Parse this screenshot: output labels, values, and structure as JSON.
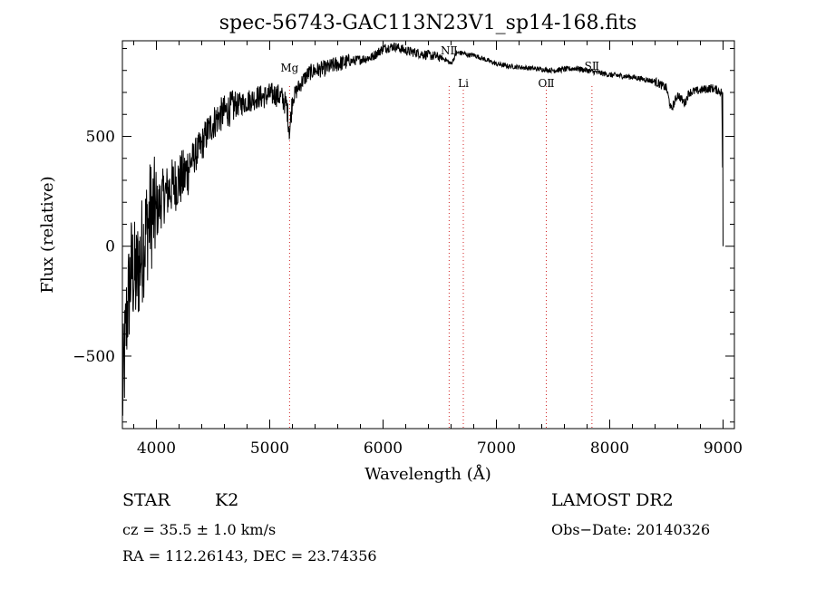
{
  "chart_data": {
    "type": "line",
    "title": "spec-56743-GAC113N23V1_sp14-168.fits",
    "xlabel": "Wavelength (Å)",
    "ylabel": "Flux (relative)",
    "xlim": [
      3700,
      9100
    ],
    "ylim": [
      -830,
      935
    ],
    "xticks": [
      4000,
      5000,
      6000,
      7000,
      8000,
      9000
    ],
    "xtick_labels": [
      "4000",
      "5000",
      "6000",
      "7000",
      "8000",
      "9000"
    ],
    "yticks": [
      -500,
      0,
      500
    ],
    "ytick_labels": [
      "−500",
      "0",
      "500"
    ],
    "grid": false,
    "line_markers": [
      {
        "label": "Mg",
        "x": 5175
      },
      {
        "label": "NⅡ",
        "x": 6583
      },
      {
        "label": "Li",
        "x": 6708
      },
      {
        "label": "OⅡ",
        "x": 7440
      },
      {
        "label": "SⅡ",
        "x": 7843
      }
    ],
    "series": [
      {
        "name": "flux",
        "x": [
          3700,
          3740,
          3780,
          3820,
          3860,
          3900,
          3950,
          4000,
          4050,
          4100,
          4150,
          4200,
          4250,
          4300,
          4350,
          4400,
          4450,
          4500,
          4550,
          4600,
          4650,
          4700,
          4750,
          4800,
          4850,
          4900,
          4950,
          5000,
          5050,
          5100,
          5150,
          5175,
          5200,
          5250,
          5300,
          5350,
          5400,
          5500,
          5600,
          5700,
          5800,
          5900,
          5950,
          6000,
          6050,
          6100,
          6150,
          6200,
          6300,
          6400,
          6500,
          6550,
          6600,
          6650,
          6700,
          6750,
          6800,
          6900,
          7000,
          7100,
          7200,
          7300,
          7400,
          7500,
          7600,
          7700,
          7800,
          7900,
          8000,
          8100,
          8200,
          8300,
          8400,
          8450,
          8500,
          8542,
          8600,
          8662,
          8700,
          8800,
          8900,
          8950,
          8990,
          9000
        ],
        "y": [
          -700,
          -300,
          -100,
          -150,
          -50,
          50,
          150,
          150,
          220,
          250,
          280,
          300,
          320,
          380,
          420,
          460,
          520,
          560,
          590,
          610,
          625,
          640,
          650,
          660,
          670,
          680,
          680,
          690,
          690,
          680,
          640,
          520,
          670,
          720,
          760,
          790,
          800,
          810,
          830,
          840,
          850,
          860,
          880,
          900,
          905,
          910,
          900,
          890,
          880,
          870,
          860,
          850,
          830,
          880,
          880,
          870,
          870,
          850,
          830,
          820,
          815,
          810,
          805,
          800,
          805,
          810,
          800,
          790,
          780,
          775,
          770,
          760,
          750,
          735,
          720,
          620,
          690,
          650,
          700,
          710,
          720,
          710,
          700,
          0
        ]
      }
    ]
  },
  "info": {
    "object_class": "STAR",
    "subclass": "K2",
    "survey": "LAMOST DR2",
    "redshift": "cz = 35.5 ± 1.0 km/s",
    "obs_date": "Obs−Date: 20140326",
    "coords": "RA = 112.26143, DEC =  23.74356"
  }
}
